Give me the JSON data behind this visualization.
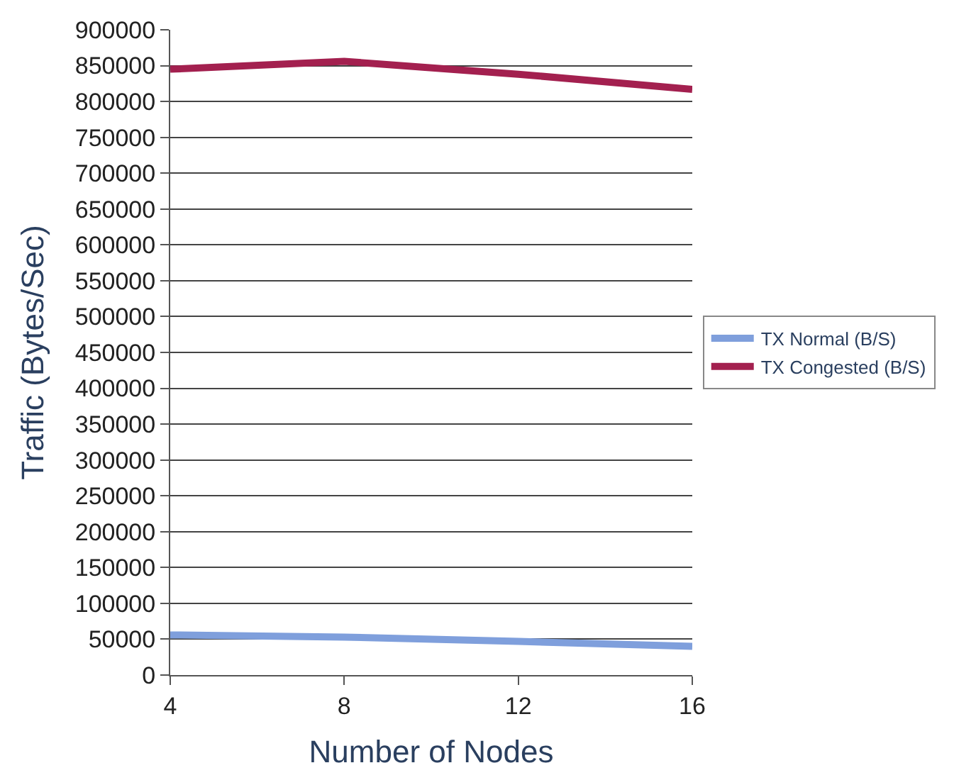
{
  "chart_data": {
    "type": "line",
    "xlabel": "Number of Nodes",
    "ylabel": "Traffic (Bytes/Sec)",
    "x": [
      4,
      8,
      12,
      16
    ],
    "series": [
      {
        "name": "TX Normal (B/S)",
        "color": "#7f9fdc",
        "values": [
          56000,
          53000,
          47000,
          40000
        ]
      },
      {
        "name": "TX Congested (B/S)",
        "color": "#a3204f",
        "values": [
          845000,
          856000,
          838000,
          817000
        ]
      }
    ],
    "xlim": [
      4,
      16
    ],
    "xticks": [
      4,
      8,
      12,
      16
    ],
    "ylim": [
      0,
      900000
    ],
    "yticks": [
      0,
      50000,
      100000,
      150000,
      200000,
      250000,
      300000,
      350000,
      400000,
      450000,
      500000,
      550000,
      600000,
      650000,
      700000,
      750000,
      800000,
      850000,
      900000
    ],
    "grid": "y",
    "legend": "right",
    "marker": "none",
    "line_style": "solid"
  }
}
